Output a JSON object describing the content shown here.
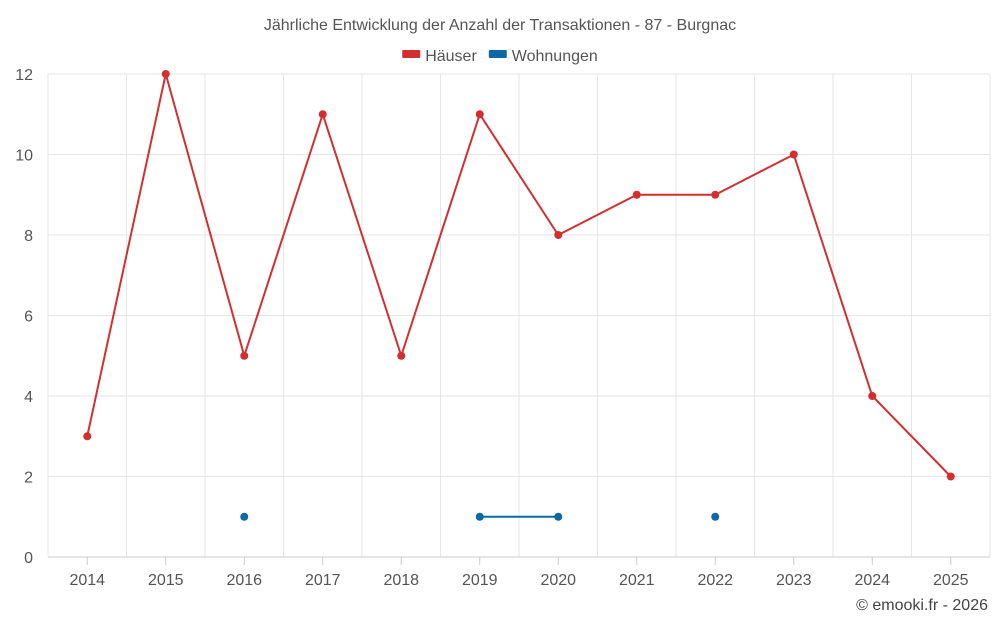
{
  "chart_data": {
    "type": "line",
    "title": "Jährliche Entwicklung der Anzahl der Transaktionen - 87 - Burgnac",
    "x": [
      "2014",
      "2015",
      "2016",
      "2017",
      "2018",
      "2019",
      "2020",
      "2021",
      "2022",
      "2023",
      "2024",
      "2025"
    ],
    "ylim": [
      0,
      12
    ],
    "yticks": [
      0,
      2,
      4,
      6,
      8,
      10,
      12
    ],
    "grid": true,
    "legend_position": "top-center",
    "series": [
      {
        "name": "Häuser",
        "color": "#d32f2f",
        "values": [
          3,
          12,
          5,
          11,
          5,
          11,
          8,
          9,
          9,
          10,
          4,
          2
        ]
      },
      {
        "name": "Wohnungen",
        "color": "#0b69a3",
        "values": [
          null,
          null,
          1,
          null,
          null,
          1,
          1,
          null,
          1,
          null,
          null,
          null
        ]
      }
    ]
  },
  "credit": "© emooki.fr - 2026"
}
